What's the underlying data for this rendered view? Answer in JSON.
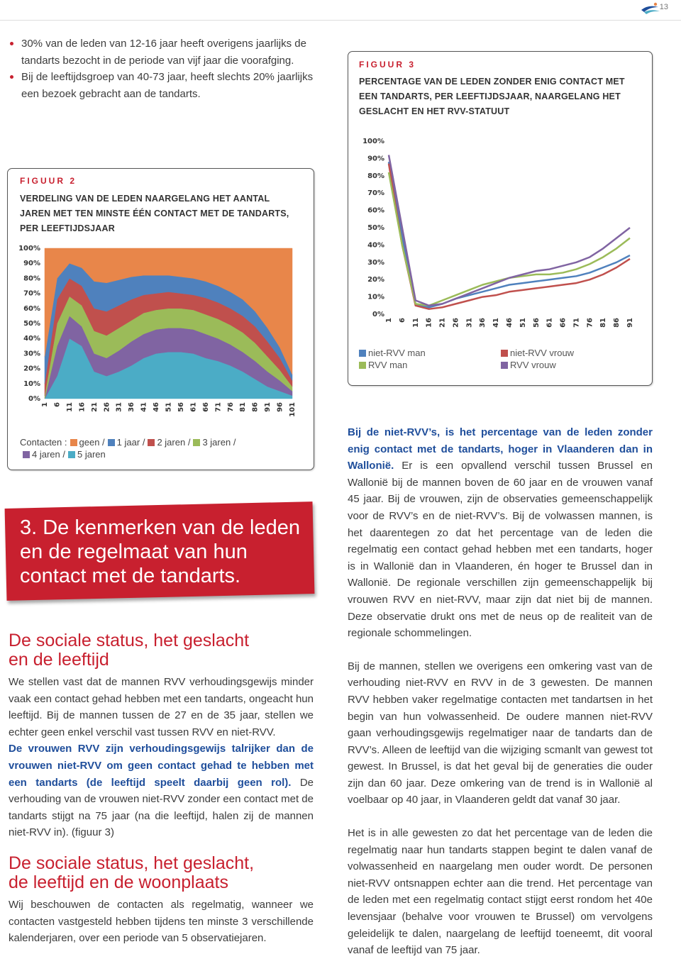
{
  "header": {
    "page_number": "13"
  },
  "bullets": [
    "30% van de leden van 12-16 jaar heeft overigens jaarlijks de tandarts bezocht in de periode van vijf jaar die voorafging.",
    "Bij de leeftijdsgroep van 40-73 jaar, heeft slechts 20% jaarlijks een bezoek gebracht aan de tandarts."
  ],
  "figures": [
    {
      "label": "FIGUUR 2",
      "legend_title": "Contacten :",
      "legend_separator": "/"
    },
    {
      "label": "FIGUUR 3"
    }
  ],
  "chart_data": [
    {
      "type": "stacked-area",
      "title": "VERDELING VAN DE LEDEN NAARGELANG HET AANTAL JAREN MET TEN MINSTE ÉÉN CONTACT MET DE TANDARTS, PER LEEFTIJDSJAAR",
      "x": [
        1,
        6,
        11,
        16,
        21,
        26,
        31,
        36,
        41,
        46,
        51,
        56,
        61,
        66,
        71,
        76,
        81,
        86,
        91,
        96,
        101
      ],
      "xlim": [
        1,
        101
      ],
      "xticks": [
        1,
        6,
        11,
        16,
        21,
        26,
        31,
        36,
        41,
        46,
        51,
        56,
        61,
        66,
        71,
        76,
        81,
        86,
        91,
        96,
        101
      ],
      "ylim": [
        0,
        100
      ],
      "yticks": [
        {
          "value": 0,
          "label": "0%"
        },
        {
          "value": 10,
          "label": "10%"
        },
        {
          "value": 20,
          "label": "20%"
        },
        {
          "value": 30,
          "label": "30%"
        },
        {
          "value": 40,
          "label": "40%"
        },
        {
          "value": 50,
          "label": "50%"
        },
        {
          "value": 60,
          "label": "60%"
        },
        {
          "value": 70,
          "label": "70%"
        },
        {
          "value": 80,
          "label": "80%"
        },
        {
          "value": 90,
          "label": "90%"
        },
        {
          "value": 100,
          "label": "100%"
        }
      ],
      "grid": false,
      "series": [
        {
          "name": "geen",
          "color": "#e8864a",
          "values": [
            72,
            20,
            10,
            13,
            22,
            23,
            21,
            19,
            18,
            18,
            18,
            19,
            20,
            22,
            25,
            29,
            34,
            42,
            53,
            66,
            84
          ]
        },
        {
          "name": "1 jaar",
          "color": "#4f81bd",
          "values": [
            18,
            14,
            10,
            12,
            18,
            19,
            17,
            15,
            13,
            12,
            11,
            11,
            11,
            11,
            11,
            11,
            11,
            10,
            9,
            7,
            4
          ]
        },
        {
          "name": "2 jaren",
          "color": "#c0504d",
          "values": [
            8,
            16,
            12,
            13,
            15,
            16,
            15,
            14,
            12,
            11,
            11,
            10,
            10,
            11,
            11,
            11,
            11,
            11,
            10,
            8,
            4
          ]
        },
        {
          "name": "3 jaren",
          "color": "#9bbb59",
          "values": [
            2,
            15,
            13,
            14,
            15,
            15,
            15,
            14,
            14,
            13,
            13,
            13,
            13,
            13,
            13,
            13,
            13,
            12,
            10,
            7,
            3
          ]
        },
        {
          "name": "4 jaren",
          "color": "#8064a2",
          "values": [
            0,
            20,
            15,
            13,
            12,
            12,
            14,
            16,
            16,
            16,
            16,
            16,
            16,
            16,
            15,
            14,
            13,
            12,
            10,
            7,
            3
          ]
        },
        {
          "name": "5 jaren",
          "color": "#4bacc6",
          "values": [
            0,
            15,
            40,
            35,
            18,
            15,
            18,
            22,
            27,
            30,
            31,
            31,
            30,
            27,
            25,
            22,
            18,
            13,
            8,
            5,
            2
          ]
        }
      ]
    },
    {
      "type": "line",
      "title": "PERCENTAGE VAN DE LEDEN ZONDER ENIG CONTACT MET EEN TANDARTS, PER LEEFTIJDSJAAR, NAARGELANG HET GESLACHT EN HET RVV-STATUUT",
      "x": [
        1,
        6,
        11,
        16,
        21,
        26,
        31,
        36,
        41,
        46,
        51,
        56,
        61,
        66,
        71,
        76,
        81,
        86,
        91
      ],
      "xlim": [
        1,
        91
      ],
      "xticks": [
        1,
        6,
        11,
        16,
        21,
        26,
        31,
        36,
        41,
        46,
        51,
        56,
        61,
        66,
        71,
        76,
        81,
        86,
        91
      ],
      "ylim": [
        0,
        100
      ],
      "yticks": [
        {
          "value": 0,
          "label": "0%"
        },
        {
          "value": 10,
          "label": "10%"
        },
        {
          "value": 20,
          "label": "20%"
        },
        {
          "value": 30,
          "label": "30%"
        },
        {
          "value": 40,
          "label": "40%"
        },
        {
          "value": 50,
          "label": "50%"
        },
        {
          "value": 60,
          "label": "60%"
        },
        {
          "value": 70,
          "label": "70%"
        },
        {
          "value": 80,
          "label": "80%"
        },
        {
          "value": 90,
          "label": "90%"
        },
        {
          "value": 100,
          "label": "100%"
        }
      ],
      "grid": false,
      "series": [
        {
          "name": "niet-RVV man",
          "color": "#4f81bd",
          "values": [
            88,
            45,
            6,
            4,
            6,
            9,
            11,
            13,
            15,
            17,
            18,
            19,
            20,
            21,
            22,
            24,
            27,
            30,
            34
          ]
        },
        {
          "name": "niet-RVV vrouw",
          "color": "#c0504d",
          "values": [
            87,
            40,
            5,
            3,
            4,
            6,
            8,
            10,
            11,
            13,
            14,
            15,
            16,
            17,
            18,
            20,
            23,
            27,
            32
          ]
        },
        {
          "name": "RVV man",
          "color": "#9bbb59",
          "values": [
            82,
            40,
            6,
            5,
            8,
            11,
            14,
            17,
            19,
            21,
            22,
            23,
            23,
            24,
            26,
            29,
            33,
            38,
            44
          ]
        },
        {
          "name": "RVV vrouw",
          "color": "#8064a2",
          "values": [
            92,
            50,
            8,
            5,
            6,
            9,
            12,
            15,
            18,
            21,
            23,
            25,
            26,
            28,
            30,
            33,
            38,
            44,
            50
          ]
        }
      ]
    }
  ],
  "section": {
    "title": "3. De kenmerken van de leden en de regelmaat van hun contact met de tandarts."
  },
  "left_column": [
    {
      "heading": "De sociale status, het geslacht en de leeftijd"
    },
    {
      "runs": [
        {
          "text": "We stellen vast dat de mannen RVV verhoudingsgewijs minder vaak een contact gehad hebben met een tandarts, ongeacht hun leeftijd. Bij de mannen tussen de 27 en de 35 jaar, stellen we echter geen enkel verschil vast tussen RVV en niet-RVV."
        }
      ]
    },
    {
      "runs": [
        {
          "text": "De vrouwen RVV zijn verhoudingsgewijs talrijker dan de vrouwen niet-RVV om geen contact gehad te hebben met een tandarts (de leeftijd speelt daarbij geen rol).",
          "bold": true
        },
        {
          "text": " De verhouding van de vrouwen niet-RVV zonder een contact met de tandarts stijgt na 75 jaar (na die leeftijd, halen zij de mannen niet-RVV in). (figuur 3)"
        }
      ]
    },
    {
      "heading": "De sociale status, het geslacht, de leeftijd en de woonplaats"
    },
    {
      "runs": [
        {
          "text": "Wij beschouwen de contacten als regelmatig, wanneer we contacten vastgesteld hebben tijdens ten minste 3 verschillende kalenderjaren, over een periode van 5 observatiejaren."
        }
      ]
    }
  ],
  "right_column": [
    {
      "runs": [
        {
          "text": "Bij de niet-RVV’s, is het percentage van de leden zonder enig contact met de tandarts, hoger in Vlaanderen dan in Wallonië.",
          "bold": true
        },
        {
          "text": " Er is een opvallend verschil tussen Brussel en Wallonië bij de mannen boven de 60 jaar en de vrouwen vanaf 45 jaar. Bij de vrouwen, zijn de observaties gemeenschappelijk voor de RVV’s en de niet-RVV’s. Bij de volwassen mannen, is het daarentegen zo dat het percentage van de leden die regelmatig een contact gehad hebben met een tandarts, hoger is in Wallonië dan in Vlaanderen, én hoger te Brussel dan in Wallonië. De regionale verschillen zijn gemeenschappelijk bij vrouwen RVV en niet-RVV, maar zijn dat niet bij de mannen. Deze observatie drukt ons met de neus op de realiteit van de regionale schommelingen."
        }
      ]
    },
    {
      "runs": [
        {
          "text": "Bij de mannen, stellen we overigens een omkering vast van de verhouding  niet-RVV en RVV in de 3 gewesten. De mannen RVV hebben vaker regelmatige contacten met tandartsen in het begin van hun volwassenheid. De oudere mannen niet-RVV gaan verhoudingsgewijs regelmatiger naar de tandarts dan de RVV’s. Alleen de leeftijd van die wijziging scmanlt van gewest tot gewest. In Brussel, is dat het geval bij de generaties die ouder zijn dan 60 jaar. Deze omkering van de trend is in Wallonië al voelbaar op 40 jaar, in Vlaanderen geldt dat vanaf 30 jaar."
        }
      ]
    },
    {
      "runs": [
        {
          "text": "Het is in alle gewesten zo dat het percentage van de leden die regelmatig naar hun tandarts stappen begint te dalen vanaf de volwassenheid en naargelang men ouder wordt. De personen niet-RVV ontsnappen echter aan die trend. Het percentage van de leden met een regelmatig contact stijgt eerst rondom het 40e levensjaar (behalve voor vrouwen te Brussel) om vervolgens geleidelijk te dalen, naargelang de leeftijd toeneemt, dit vooral vanaf de leeftijd van 75 jaar."
        }
      ]
    }
  ]
}
